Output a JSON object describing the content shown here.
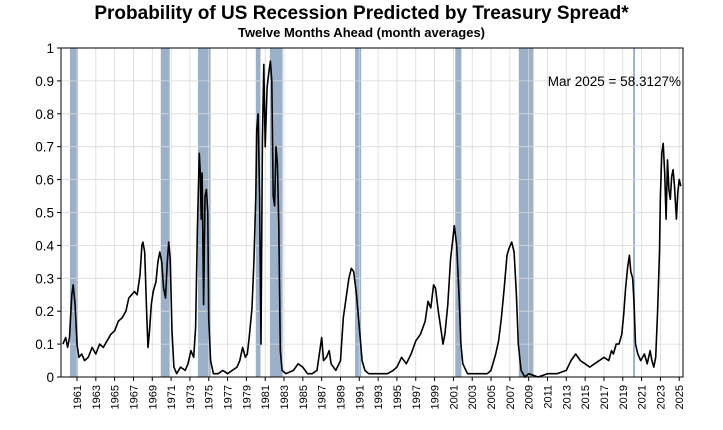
{
  "chart_data": {
    "type": "line",
    "title": "Probability of US Recession Predicted by Treasury Spread*",
    "subtitle": "Twelve Months Ahead (month averages)",
    "xlabel": "",
    "ylabel": "",
    "xlim": [
      1959.3,
      2025.4
    ],
    "ylim": [
      0,
      1
    ],
    "y_ticks": [
      "0",
      "0.1",
      "0.2",
      "0.3",
      "0.4",
      "0.5",
      "0.6",
      "0.7",
      "0.8",
      "0.9",
      "1"
    ],
    "x_ticks": [
      "1961",
      "1963",
      "1965",
      "1967",
      "1969",
      "1971",
      "1973",
      "1975",
      "1977",
      "1979",
      "1981",
      "1983",
      "1985",
      "1987",
      "1989",
      "1991",
      "1993",
      "1995",
      "1997",
      "1999",
      "2001",
      "2003",
      "2005",
      "2007",
      "2009",
      "2011",
      "2013",
      "2015",
      "2017",
      "2019",
      "2021",
      "2023",
      "2025"
    ],
    "grid": true,
    "annotation": "Mar 2025 = 58.3127%",
    "colors": {
      "line": "#000000",
      "recession": "#9bb1ca",
      "grid": "#d9d9d9",
      "marker": "#9bb1ca"
    },
    "recessions": [
      {
        "start": 1960.25,
        "end": 1961.1
      },
      {
        "start": 1969.9,
        "end": 1970.85
      },
      {
        "start": 1973.85,
        "end": 1975.2
      },
      {
        "start": 1980.0,
        "end": 1980.5
      },
      {
        "start": 1981.5,
        "end": 1982.85
      },
      {
        "start": 1990.55,
        "end": 1991.2
      },
      {
        "start": 2001.2,
        "end": 2001.85
      },
      {
        "start": 2007.95,
        "end": 2009.5
      },
      {
        "start": 2020.1,
        "end": 2020.3
      }
    ],
    "series": [
      {
        "name": "Probability of recession",
        "points": [
          [
            1959.5,
            0.1
          ],
          [
            1959.8,
            0.12
          ],
          [
            1960.0,
            0.09
          ],
          [
            1960.2,
            0.12
          ],
          [
            1960.45,
            0.25
          ],
          [
            1960.6,
            0.28
          ],
          [
            1960.8,
            0.22
          ],
          [
            1961.0,
            0.1
          ],
          [
            1961.2,
            0.06
          ],
          [
            1961.5,
            0.07
          ],
          [
            1961.8,
            0.05
          ],
          [
            1962.2,
            0.06
          ],
          [
            1962.6,
            0.09
          ],
          [
            1963.0,
            0.07
          ],
          [
            1963.4,
            0.1
          ],
          [
            1963.8,
            0.09
          ],
          [
            1964.2,
            0.11
          ],
          [
            1964.6,
            0.13
          ],
          [
            1965.0,
            0.14
          ],
          [
            1965.4,
            0.17
          ],
          [
            1965.8,
            0.18
          ],
          [
            1966.2,
            0.2
          ],
          [
            1966.5,
            0.24
          ],
          [
            1966.8,
            0.25
          ],
          [
            1967.1,
            0.26
          ],
          [
            1967.4,
            0.25
          ],
          [
            1967.7,
            0.31
          ],
          [
            1967.9,
            0.4
          ],
          [
            1968.0,
            0.41
          ],
          [
            1968.2,
            0.38
          ],
          [
            1968.4,
            0.2
          ],
          [
            1968.55,
            0.09
          ],
          [
            1968.7,
            0.14
          ],
          [
            1968.9,
            0.22
          ],
          [
            1969.1,
            0.26
          ],
          [
            1969.4,
            0.29
          ],
          [
            1969.6,
            0.35
          ],
          [
            1969.8,
            0.38
          ],
          [
            1970.0,
            0.35
          ],
          [
            1970.2,
            0.27
          ],
          [
            1970.4,
            0.24
          ],
          [
            1970.6,
            0.35
          ],
          [
            1970.75,
            0.41
          ],
          [
            1970.9,
            0.36
          ],
          [
            1971.1,
            0.14
          ],
          [
            1971.3,
            0.03
          ],
          [
            1971.6,
            0.01
          ],
          [
            1972.0,
            0.03
          ],
          [
            1972.5,
            0.02
          ],
          [
            1972.8,
            0.04
          ],
          [
            1973.1,
            0.08
          ],
          [
            1973.4,
            0.06
          ],
          [
            1973.6,
            0.15
          ],
          [
            1973.8,
            0.45
          ],
          [
            1974.0,
            0.68
          ],
          [
            1974.1,
            0.62
          ],
          [
            1974.2,
            0.48
          ],
          [
            1974.3,
            0.62
          ],
          [
            1974.45,
            0.22
          ],
          [
            1974.6,
            0.55
          ],
          [
            1974.75,
            0.57
          ],
          [
            1974.9,
            0.5
          ],
          [
            1975.0,
            0.18
          ],
          [
            1975.2,
            0.05
          ],
          [
            1975.5,
            0.01
          ],
          [
            1976.0,
            0.01
          ],
          [
            1976.5,
            0.02
          ],
          [
            1977.0,
            0.01
          ],
          [
            1977.5,
            0.02
          ],
          [
            1978.0,
            0.03
          ],
          [
            1978.3,
            0.05
          ],
          [
            1978.6,
            0.09
          ],
          [
            1978.9,
            0.06
          ],
          [
            1979.1,
            0.07
          ],
          [
            1979.3,
            0.12
          ],
          [
            1979.6,
            0.21
          ],
          [
            1979.8,
            0.35
          ],
          [
            1980.0,
            0.55
          ],
          [
            1980.1,
            0.75
          ],
          [
            1980.25,
            0.8
          ],
          [
            1980.4,
            0.55
          ],
          [
            1980.55,
            0.1
          ],
          [
            1980.7,
            0.72
          ],
          [
            1980.85,
            0.95
          ],
          [
            1981.0,
            0.7
          ],
          [
            1981.2,
            0.88
          ],
          [
            1981.4,
            0.93
          ],
          [
            1981.55,
            0.96
          ],
          [
            1981.7,
            0.9
          ],
          [
            1981.85,
            0.55
          ],
          [
            1982.0,
            0.52
          ],
          [
            1982.15,
            0.7
          ],
          [
            1982.3,
            0.65
          ],
          [
            1982.45,
            0.46
          ],
          [
            1982.6,
            0.08
          ],
          [
            1982.8,
            0.02
          ],
          [
            1983.2,
            0.01
          ],
          [
            1984.0,
            0.02
          ],
          [
            1984.5,
            0.04
          ],
          [
            1985.0,
            0.03
          ],
          [
            1985.5,
            0.01
          ],
          [
            1986.0,
            0.01
          ],
          [
            1986.5,
            0.02
          ],
          [
            1986.8,
            0.08
          ],
          [
            1987.0,
            0.12
          ],
          [
            1987.2,
            0.05
          ],
          [
            1987.5,
            0.06
          ],
          [
            1987.8,
            0.08
          ],
          [
            1988.0,
            0.04
          ],
          [
            1988.5,
            0.02
          ],
          [
            1989.0,
            0.05
          ],
          [
            1989.3,
            0.18
          ],
          [
            1989.6,
            0.24
          ],
          [
            1989.9,
            0.3
          ],
          [
            1990.15,
            0.33
          ],
          [
            1990.4,
            0.32
          ],
          [
            1990.7,
            0.25
          ],
          [
            1991.0,
            0.15
          ],
          [
            1991.3,
            0.05
          ],
          [
            1991.6,
            0.02
          ],
          [
            1992.0,
            0.01
          ],
          [
            1993.0,
            0.01
          ],
          [
            1994.0,
            0.01
          ],
          [
            1994.6,
            0.02
          ],
          [
            1995.0,
            0.03
          ],
          [
            1995.5,
            0.06
          ],
          [
            1996.0,
            0.04
          ],
          [
            1996.5,
            0.07
          ],
          [
            1997.0,
            0.11
          ],
          [
            1997.5,
            0.13
          ],
          [
            1998.0,
            0.17
          ],
          [
            1998.3,
            0.23
          ],
          [
            1998.6,
            0.21
          ],
          [
            1998.9,
            0.28
          ],
          [
            1999.1,
            0.27
          ],
          [
            1999.4,
            0.2
          ],
          [
            1999.7,
            0.14
          ],
          [
            1999.9,
            0.1
          ],
          [
            2000.1,
            0.13
          ],
          [
            2000.4,
            0.22
          ],
          [
            2000.7,
            0.36
          ],
          [
            2000.9,
            0.41
          ],
          [
            2001.1,
            0.46
          ],
          [
            2001.35,
            0.4
          ],
          [
            2001.6,
            0.25
          ],
          [
            2001.8,
            0.1
          ],
          [
            2002.0,
            0.04
          ],
          [
            2002.5,
            0.01
          ],
          [
            2003.0,
            0.01
          ],
          [
            2004.0,
            0.01
          ],
          [
            2004.6,
            0.01
          ],
          [
            2005.0,
            0.02
          ],
          [
            2005.5,
            0.07
          ],
          [
            2005.8,
            0.11
          ],
          [
            2006.1,
            0.18
          ],
          [
            2006.4,
            0.27
          ],
          [
            2006.7,
            0.37
          ],
          [
            2006.9,
            0.39
          ],
          [
            2007.2,
            0.41
          ],
          [
            2007.45,
            0.38
          ],
          [
            2007.7,
            0.25
          ],
          [
            2007.9,
            0.1
          ],
          [
            2008.2,
            0.02
          ],
          [
            2008.6,
            0.0
          ],
          [
            2009.0,
            0.01
          ],
          [
            2010.0,
            0.0
          ],
          [
            2011.0,
            0.01
          ],
          [
            2012.0,
            0.01
          ],
          [
            2013.0,
            0.02
          ],
          [
            2013.5,
            0.05
          ],
          [
            2014.0,
            0.07
          ],
          [
            2014.5,
            0.05
          ],
          [
            2015.0,
            0.04
          ],
          [
            2015.5,
            0.03
          ],
          [
            2016.0,
            0.04
          ],
          [
            2016.5,
            0.05
          ],
          [
            2017.0,
            0.06
          ],
          [
            2017.5,
            0.05
          ],
          [
            2017.8,
            0.08
          ],
          [
            2018.0,
            0.07
          ],
          [
            2018.3,
            0.1
          ],
          [
            2018.6,
            0.1
          ],
          [
            2018.9,
            0.13
          ],
          [
            2019.1,
            0.19
          ],
          [
            2019.3,
            0.27
          ],
          [
            2019.5,
            0.33
          ],
          [
            2019.7,
            0.37
          ],
          [
            2019.85,
            0.32
          ],
          [
            2020.05,
            0.3
          ],
          [
            2020.2,
            0.22
          ],
          [
            2020.35,
            0.1
          ],
          [
            2020.6,
            0.07
          ],
          [
            2020.9,
            0.05
          ],
          [
            2021.3,
            0.07
          ],
          [
            2021.6,
            0.04
          ],
          [
            2021.9,
            0.08
          ],
          [
            2022.1,
            0.05
          ],
          [
            2022.3,
            0.03
          ],
          [
            2022.5,
            0.06
          ],
          [
            2022.7,
            0.2
          ],
          [
            2022.9,
            0.38
          ],
          [
            2023.0,
            0.55
          ],
          [
            2023.15,
            0.68
          ],
          [
            2023.3,
            0.71
          ],
          [
            2023.45,
            0.62
          ],
          [
            2023.6,
            0.48
          ],
          [
            2023.75,
            0.66
          ],
          [
            2023.9,
            0.57
          ],
          [
            2024.05,
            0.54
          ],
          [
            2024.2,
            0.61
          ],
          [
            2024.35,
            0.63
          ],
          [
            2024.5,
            0.58
          ],
          [
            2024.7,
            0.48
          ],
          [
            2024.85,
            0.56
          ],
          [
            2025.0,
            0.6
          ],
          [
            2025.17,
            0.58
          ]
        ]
      }
    ]
  }
}
